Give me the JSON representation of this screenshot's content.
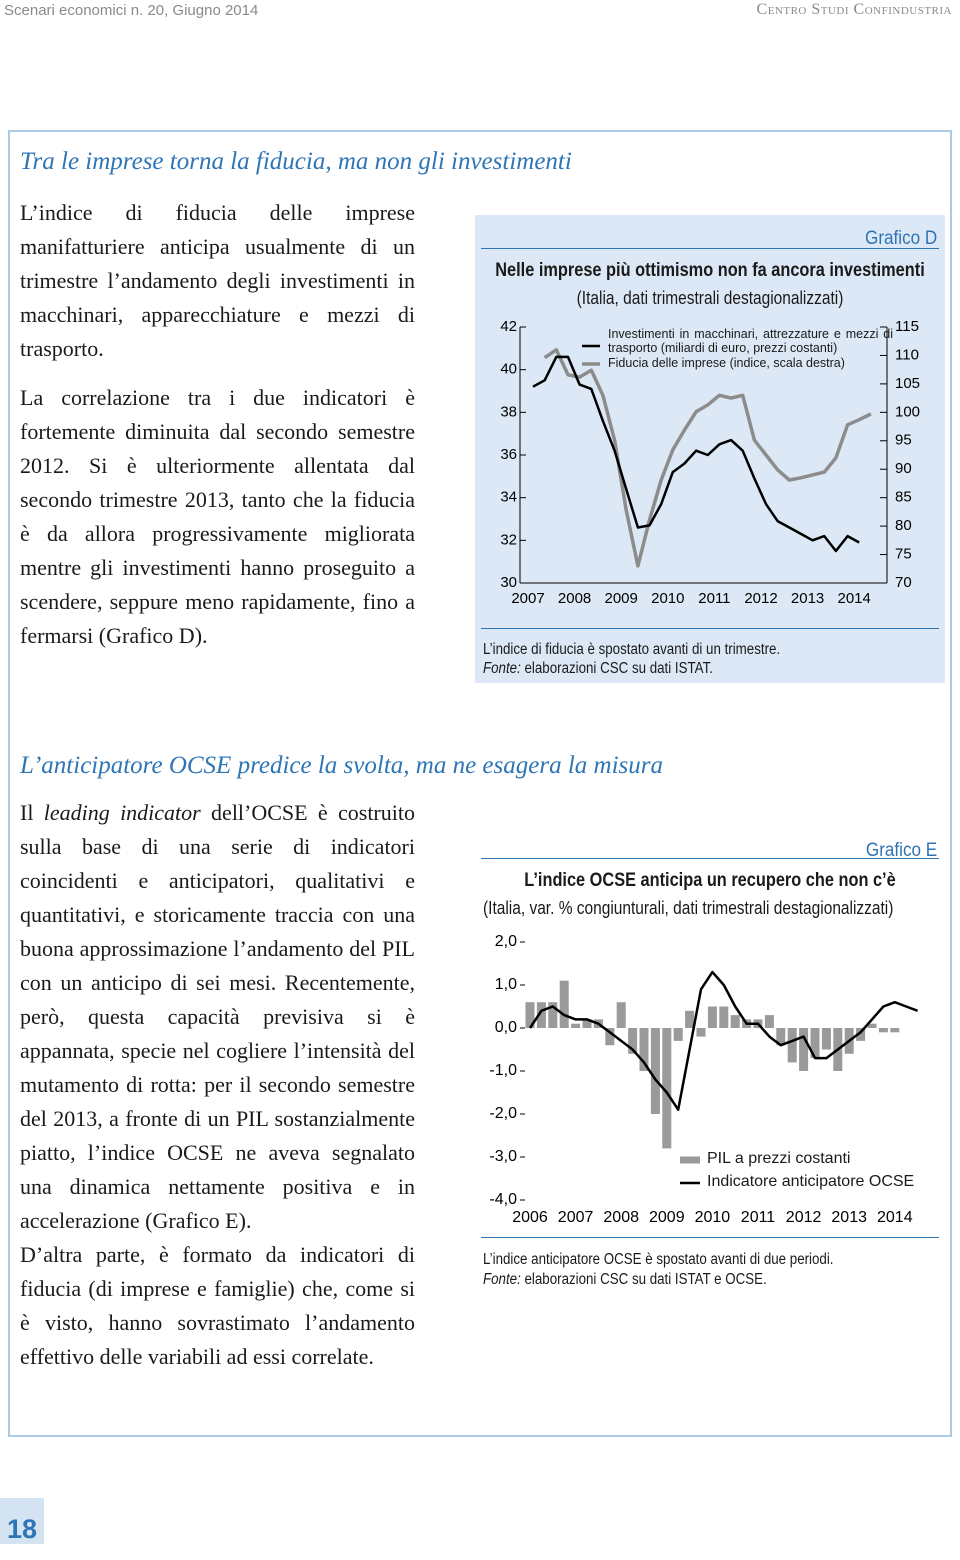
{
  "header": {
    "left": "Scenari economici n. 20, Giugno 2014",
    "right": "Centro Studi Confindustria"
  },
  "sections": [
    {
      "title": "Tra le imprese torna la fiducia, ma non gli investimenti",
      "paragraphs": [
        [
          {
            "text": "L’indice di fiducia delle imprese manifatturiere anticipa usualmente di un trimestre l’andamento degli investimenti in macchinari, apparecchiature e mezzi di trasporto."
          }
        ],
        [
          {
            "text": "La correlazione tra i due indicatori è fortemente diminuita dal secondo semestre 2012. Si è ulteriormente allentata dal secondo trimestre 2013, tanto che la fiducia è da allora progressivamente migliorata mentre gli investimenti hanno proseguito a scendere, seppure meno rapidamente, fino a fermarsi (Grafico D)."
          }
        ]
      ]
    },
    {
      "title": "L’anticipatore OCSE predice la svolta, ma ne esagera la misura",
      "paragraphs": [
        [
          {
            "text": "Il "
          },
          {
            "text": "leading indicator",
            "italic": true
          },
          {
            "text": " dell’OCSE è costruito sulla base di una serie di indicatori coincidenti e anticipatori, qualitativi e quantitativi, e storicamente traccia con una buona approssimazione l’andamento del PIL con un anticipo di sei mesi. Recentemente, però, questa capacità previsiva si è appannata, specie nel cogliere l’intensità del mutamento di rotta: per il secondo semestre del 2013, a fronte di un PIL sostanzialmente piatto, l’indice OCSE ne aveva segnalato una dinamica nettamente positiva e in accelerazione (Grafico E)."
          }
        ],
        [
          {
            "text": "D’altra parte, è formato da indicatori di fiducia (di imprese e famiglie) che, come si è visto, hanno sovrastimato l’andamento effettivo delle variabili ad essi correlate."
          }
        ]
      ]
    }
  ],
  "chart_data": [
    {
      "type": "line",
      "label": "Grafico D",
      "title": "Nelle imprese più ottimismo non fa ancora investimenti",
      "subtitle": "(Italia, dati trimestrali destagionalizzati)",
      "categories": [
        "2007",
        null,
        null,
        null,
        "2008",
        null,
        null,
        null,
        "2009",
        null,
        null,
        null,
        "2010",
        null,
        null,
        null,
        "2011",
        null,
        null,
        null,
        "2012",
        null,
        null,
        null,
        "2013",
        null,
        null,
        null,
        "2014",
        null
      ],
      "series": [
        {
          "name": "Investimenti in macchinari, attrezzature e mezzi di trasporto (miliardi di euro, prezzi costanti)",
          "color": "#000000",
          "values": [
            39.2,
            39.5,
            40.6,
            40.6,
            39.3,
            39.1,
            37.6,
            36.2,
            34.4,
            32.6,
            32.7,
            33.7,
            35.2,
            35.6,
            36.2,
            36.0,
            36.5,
            36.7,
            36.2,
            34.9,
            33.7,
            32.9,
            32.6,
            32.3,
            32.0,
            32.2,
            31.5,
            32.2,
            31.9,
            null
          ]
        },
        {
          "name": "Fiducia delle imprese (indice, scala destra)",
          "color": "#8c8c8c",
          "axis": "y2",
          "values": [
            null,
            109.6,
            111.0,
            106.6,
            106.2,
            107.4,
            103.0,
            95.1,
            82.8,
            73.0,
            81.1,
            88.1,
            93.4,
            96.9,
            100.1,
            101.3,
            103.0,
            102.5,
            103.0,
            95.1,
            92.5,
            89.9,
            88.1,
            88.5,
            89.0,
            89.5,
            92.0,
            97.8,
            98.7,
            99.7
          ]
        }
      ],
      "ylim": [
        30,
        42
      ],
      "yticks": [
        30,
        32,
        34,
        36,
        38,
        40,
        42
      ],
      "y2lim": [
        70,
        115
      ],
      "y2ticks": [
        70,
        75,
        80,
        85,
        90,
        95,
        100,
        105,
        110,
        115
      ],
      "note": "L’indice di fiducia è spostato avanti di un trimestre.",
      "source_label": "Fonte:",
      "source": "elaborazioni CSC su dati ISTAT."
    },
    {
      "type": "combo",
      "label": "Grafico E",
      "title": "L’indice OCSE anticipa un recupero che non c’è",
      "subtitle": "(Italia, var. % congiunturali, dati trimestrali destagionalizzati)",
      "categories": [
        "2006",
        null,
        null,
        null,
        "2007",
        null,
        null,
        null,
        "2008",
        null,
        null,
        null,
        "2009",
        null,
        null,
        null,
        "2010",
        null,
        null,
        null,
        "2011",
        null,
        null,
        null,
        "2012",
        null,
        null,
        null,
        "2013",
        null,
        null,
        null,
        "2014",
        null,
        null
      ],
      "series": [
        {
          "name": "PIL a prezzi costanti",
          "type": "bar",
          "color": "#9a9a9a",
          "values": [
            0.6,
            0.6,
            0.6,
            1.1,
            0.1,
            0.2,
            0.2,
            -0.4,
            0.6,
            -0.6,
            -1.0,
            -2.0,
            -2.8,
            -0.3,
            0.4,
            -0.2,
            0.5,
            0.5,
            0.3,
            0.2,
            0.2,
            0.3,
            -0.4,
            -0.8,
            -1.0,
            -0.7,
            -0.5,
            -1.0,
            -0.6,
            -0.3,
            0.1,
            -0.1,
            -0.1,
            null,
            null
          ]
        },
        {
          "name": "Indicatore anticipatore OCSE",
          "type": "line",
          "color": "#000000",
          "values": [
            0.0,
            0.4,
            0.5,
            0.3,
            0.2,
            0.2,
            0.1,
            -0.1,
            -0.3,
            -0.5,
            -0.8,
            -1.2,
            -1.5,
            -1.9,
            -0.5,
            0.9,
            1.3,
            1.0,
            0.5,
            0.1,
            0.1,
            -0.2,
            -0.4,
            -0.3,
            -0.2,
            -0.7,
            -0.7,
            -0.5,
            -0.3,
            -0.1,
            0.2,
            0.5,
            0.6,
            0.5,
            0.4
          ]
        }
      ],
      "ylim": [
        -4,
        2
      ],
      "yticks": [
        {
          "value": -4,
          "label": "-4,0"
        },
        {
          "value": -3,
          "label": "-3,0"
        },
        {
          "value": -2,
          "label": "-2,0"
        },
        {
          "value": -1,
          "label": "-1,0"
        },
        {
          "value": 0,
          "label": "0,0"
        },
        {
          "value": 1,
          "label": "1,0"
        },
        {
          "value": 2,
          "label": "2,0"
        }
      ],
      "note": "L’indice anticipatore OCSE è spostato avanti di due periodi.",
      "source_label": "Fonte:",
      "source": "elaborazioni CSC su dati ISTAT e OCSE."
    }
  ],
  "page_number": "18"
}
